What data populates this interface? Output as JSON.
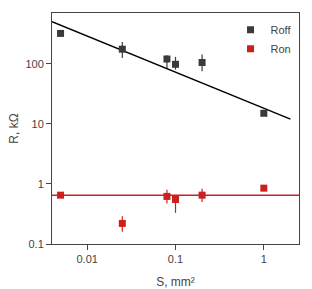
{
  "chart_data": {
    "type": "scatter",
    "xlabel": "S, mm²",
    "ylabel": "R, kΩ",
    "log": true,
    "grid": false,
    "legend": "upper right",
    "xlim": [
      0.004,
      2.5
    ],
    "ylim": [
      0.1,
      700
    ],
    "xticks": [
      0.01,
      0.1,
      1
    ],
    "yticks": [
      0.1,
      1,
      10,
      100
    ],
    "series": [
      {
        "name": "Roff",
        "color": "#3a3a3a",
        "marker": "square",
        "x": [
          0.005,
          0.025,
          0.08,
          0.1,
          0.2,
          1.0
        ],
        "values": [
          320,
          175,
          120,
          98,
          105,
          15
        ],
        "error_low": [
          0,
          50,
          35,
          18,
          30,
          0
        ],
        "error_high": [
          0,
          55,
          18,
          32,
          38,
          0
        ]
      },
      {
        "name": "Ron",
        "color": "#cc2020",
        "marker": "square",
        "x": [
          0.005,
          0.025,
          0.08,
          0.1,
          0.2,
          1.0
        ],
        "values": [
          0.65,
          0.22,
          0.62,
          0.55,
          0.65,
          0.85
        ],
        "error_low": [
          0,
          0.06,
          0.15,
          0.22,
          0.15,
          0
        ],
        "error_high": [
          0,
          0.07,
          0.18,
          0.08,
          0.18,
          0.05
        ]
      }
    ],
    "lines": [
      {
        "x": [
          0.004,
          2.0
        ],
        "values": [
          500,
          12
        ],
        "color": "#000000"
      }
    ],
    "hlines": [
      {
        "y": 0.65,
        "color": "#cc2020"
      }
    ]
  }
}
